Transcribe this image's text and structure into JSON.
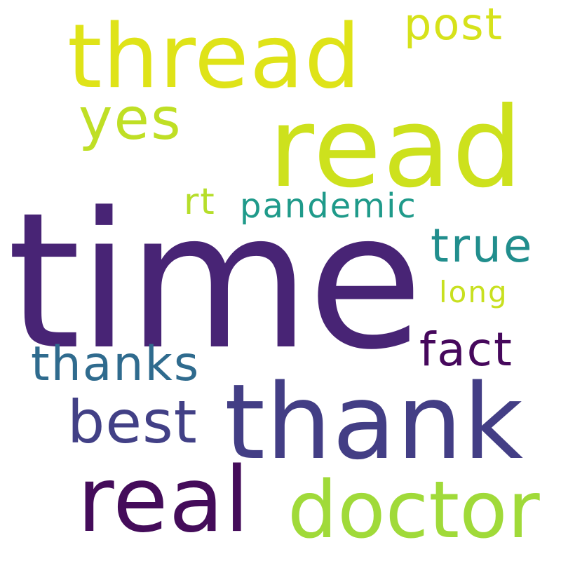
{
  "word_cloud": {
    "background": "#ffffff",
    "words": [
      {
        "id": "time",
        "text": "time",
        "color": "#482475"
      },
      {
        "id": "read",
        "text": "read",
        "color": "#cde11d"
      },
      {
        "id": "thread",
        "text": "thread",
        "color": "#dfe318"
      },
      {
        "id": "thank",
        "text": "thank",
        "color": "#433e85"
      },
      {
        "id": "real",
        "text": "real",
        "color": "#440c5a"
      },
      {
        "id": "doctor",
        "text": "doctor",
        "color": "#a0da39"
      },
      {
        "id": "best",
        "text": "best",
        "color": "#424086"
      },
      {
        "id": "thanks",
        "text": "thanks",
        "color": "#2f6b8e"
      },
      {
        "id": "fact",
        "text": "fact",
        "color": "#46085c"
      },
      {
        "id": "true",
        "text": "true",
        "color": "#218e8d"
      },
      {
        "id": "yes",
        "text": "yes",
        "color": "#bfdf25"
      },
      {
        "id": "post",
        "text": "post",
        "color": "#d6e21a"
      },
      {
        "id": "pandemic",
        "text": "pandemic",
        "color": "#1f9a8a"
      },
      {
        "id": "rt",
        "text": "rt",
        "color": "#b6de2b"
      },
      {
        "id": "long",
        "text": "long",
        "color": "#c8e020"
      }
    ]
  }
}
